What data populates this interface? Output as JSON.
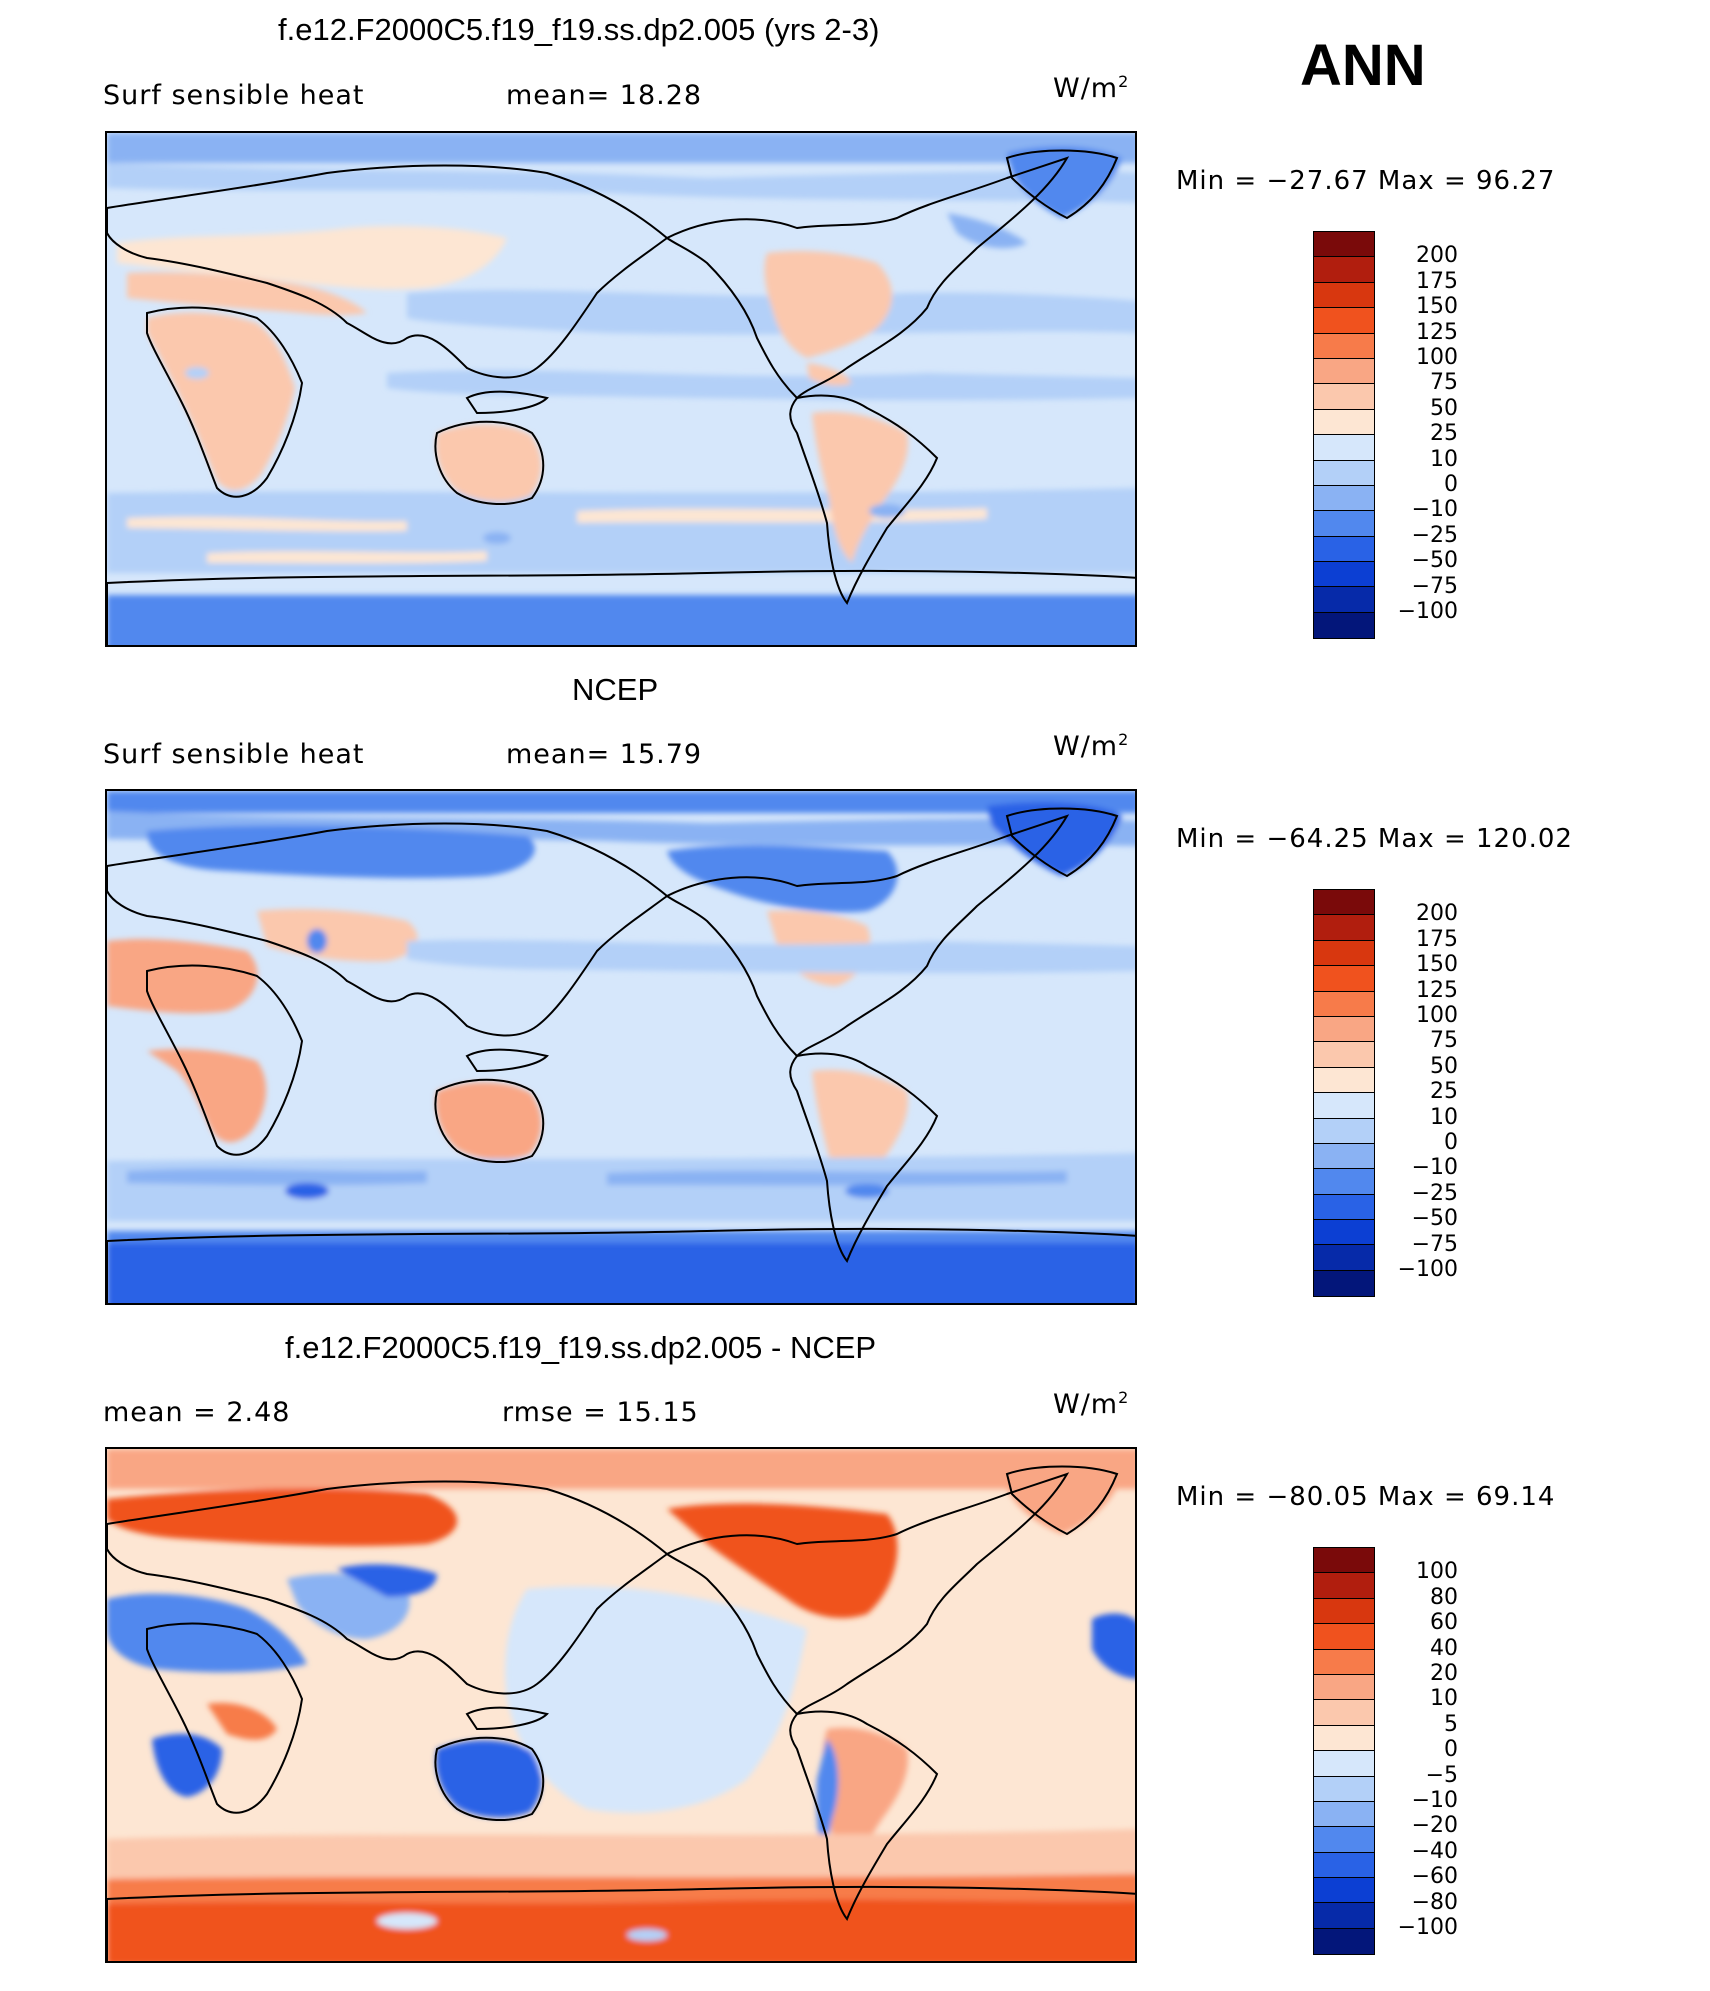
{
  "season": "ANN",
  "units": "W/m",
  "units_exp": "2",
  "panels": [
    {
      "title": "f.e12.F2000C5.f19_f19.ss.dp2.005 (yrs 2-3)",
      "left_label": "Surf  sensible  heat",
      "right_label": "mean=   18.28",
      "minmax": "Min  =  −27.67  Max  =    96.27",
      "colorbar": {
        "labels": [
          "200",
          "175",
          "150",
          "125",
          "100",
          "75",
          "50",
          "25",
          "10",
          "0",
          "−10",
          "−25",
          "−50",
          "−75",
          "−100"
        ],
        "colors": [
          "#7a0a0a",
          "#b11e0e",
          "#d8370f",
          "#f0521e",
          "#f77b4a",
          "#f9a684",
          "#fbc8ad",
          "#fde6d3",
          "#d6e7fb",
          "#b3d0f8",
          "#8ab2f3",
          "#5188ee",
          "#2962e6",
          "#0c3fd3",
          "#062aa9",
          "#03167a"
        ]
      }
    },
    {
      "title": "NCEP",
      "left_label": "Surf  sensible  heat",
      "right_label": "mean=   15.79",
      "minmax": "Min  =  −64.25  Max  =  120.02",
      "colorbar": {
        "labels": [
          "200",
          "175",
          "150",
          "125",
          "100",
          "75",
          "50",
          "25",
          "10",
          "0",
          "−10",
          "−25",
          "−50",
          "−75",
          "−100"
        ],
        "colors": [
          "#7a0a0a",
          "#b11e0e",
          "#d8370f",
          "#f0521e",
          "#f77b4a",
          "#f9a684",
          "#fbc8ad",
          "#fde6d3",
          "#d6e7fb",
          "#b3d0f8",
          "#8ab2f3",
          "#5188ee",
          "#2962e6",
          "#0c3fd3",
          "#062aa9",
          "#03167a"
        ]
      }
    },
    {
      "title": "f.e12.F2000C5.f19_f19.ss.dp2.005 - NCEP",
      "left_label": "mean  =     2.48",
      "right_label": "rmse  =    15.15",
      "minmax": "Min  =  −80.05  Max  =    69.14",
      "colorbar": {
        "labels": [
          "100",
          "80",
          "60",
          "40",
          "20",
          "10",
          "5",
          "0",
          "−5",
          "−10",
          "−20",
          "−40",
          "−60",
          "−80",
          "−100"
        ],
        "colors": [
          "#7a0a0a",
          "#b11e0e",
          "#d8370f",
          "#f0521e",
          "#f77b4a",
          "#f9a684",
          "#fbc8ad",
          "#fde6d3",
          "#d6e7fb",
          "#b3d0f8",
          "#8ab2f3",
          "#5188ee",
          "#2962e6",
          "#0c3fd3",
          "#062aa9",
          "#03167a"
        ]
      }
    }
  ]
}
